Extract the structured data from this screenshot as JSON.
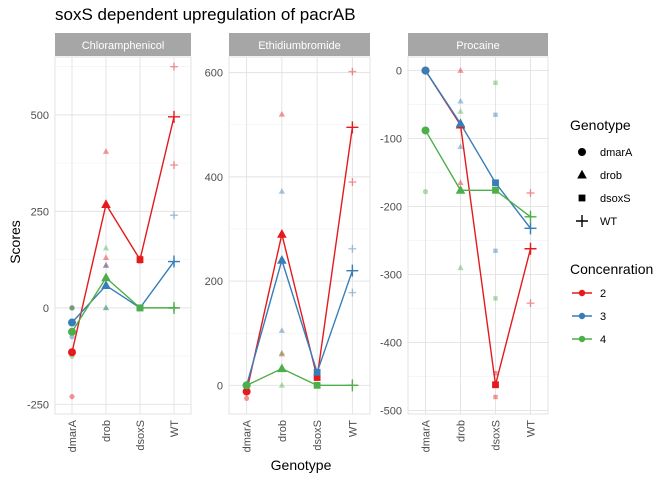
{
  "chart_data": {
    "type": "line",
    "title": "soxS dependent upregulation of pacrAB",
    "xlabel": "Genotype",
    "ylabel": "Scores",
    "categories": [
      "dmarA",
      "drob",
      "dsoxS",
      "WT"
    ],
    "grid": true,
    "colors": {
      "2": "#e41a1c",
      "3": "#377eb8",
      "4": "#4daf4a"
    },
    "legend": {
      "placement": "right",
      "shape_title": "Genotype",
      "shape_items": [
        {
          "label": "dmarA",
          "shape": "circle"
        },
        {
          "label": "drob",
          "shape": "triangle"
        },
        {
          "label": "dsoxS",
          "shape": "square"
        },
        {
          "label": "WT",
          "shape": "plus"
        }
      ],
      "color_title": "Concenration",
      "color_items": [
        {
          "label": "2",
          "color": "#e41a1c"
        },
        {
          "label": "3",
          "color": "#377eb8"
        },
        {
          "label": "4",
          "color": "#4daf4a"
        }
      ]
    },
    "panels": [
      {
        "strip": "Chloramphenicol",
        "ylim": [
          -275,
          650
        ],
        "yticks": [
          -250,
          0,
          250,
          500
        ],
        "series": [
          {
            "name": "2",
            "values": [
              -115,
              268,
              125,
              495
            ]
          },
          {
            "name": "3",
            "values": [
              -38,
              58,
              0,
              120
            ]
          },
          {
            "name": "4",
            "values": [
              -62,
              78,
              0,
              0
            ]
          }
        ],
        "replicates": [
          {
            "series": "2",
            "category": "dmarA",
            "values": [
              0,
              -115,
              -230
            ]
          },
          {
            "series": "2",
            "category": "drob",
            "values": [
              405,
              130,
              110
            ]
          },
          {
            "series": "2",
            "category": "dsoxS",
            "values": [
              130,
              120
            ]
          },
          {
            "series": "2",
            "category": "WT",
            "values": [
              625,
              370
            ]
          },
          {
            "series": "3",
            "category": "dmarA",
            "values": [
              0,
              -40,
              -75
            ]
          },
          {
            "series": "3",
            "category": "drob",
            "values": [
              110,
              60,
              0
            ]
          },
          {
            "series": "3",
            "category": "dsoxS",
            "values": [
              0
            ]
          },
          {
            "series": "3",
            "category": "WT",
            "values": [
              240,
              120,
              0
            ]
          },
          {
            "series": "4",
            "category": "dmarA",
            "values": [
              0,
              -62,
              -125
            ]
          },
          {
            "series": "4",
            "category": "drob",
            "values": [
              155,
              80,
              0
            ]
          },
          {
            "series": "4",
            "category": "dsoxS",
            "values": [
              0
            ]
          },
          {
            "series": "4",
            "category": "WT",
            "values": [
              0
            ]
          }
        ]
      },
      {
        "strip": "Ethidiumbromide",
        "ylim": [
          -55,
          630
        ],
        "yticks": [
          0,
          200,
          400,
          600
        ],
        "series": [
          {
            "name": "2",
            "values": [
              -12,
              290,
              15,
              495
            ]
          },
          {
            "name": "3",
            "values": [
              0,
              240,
              25,
              220
            ]
          },
          {
            "name": "4",
            "values": [
              0,
              32,
              0,
              0
            ]
          }
        ],
        "replicates": [
          {
            "series": "2",
            "category": "dmarA",
            "values": [
              0,
              -12,
              -25
            ]
          },
          {
            "series": "2",
            "category": "drob",
            "values": [
              520,
              290,
              60
            ]
          },
          {
            "series": "2",
            "category": "dsoxS",
            "values": [
              15
            ]
          },
          {
            "series": "2",
            "category": "WT",
            "values": [
              602,
              390
            ]
          },
          {
            "series": "3",
            "category": "dmarA",
            "values": [
              0
            ]
          },
          {
            "series": "3",
            "category": "drob",
            "values": [
              372,
              240,
              105
            ]
          },
          {
            "series": "3",
            "category": "dsoxS",
            "values": [
              25
            ]
          },
          {
            "series": "3",
            "category": "WT",
            "values": [
              262,
              220,
              178
            ]
          },
          {
            "series": "4",
            "category": "dmarA",
            "values": [
              0
            ]
          },
          {
            "series": "4",
            "category": "drob",
            "values": [
              62,
              32,
              0
            ]
          },
          {
            "series": "4",
            "category": "dsoxS",
            "values": [
              0
            ]
          },
          {
            "series": "4",
            "category": "WT",
            "values": [
              0
            ]
          }
        ]
      },
      {
        "strip": "Procaine",
        "ylim": [
          -505,
          20
        ],
        "yticks": [
          -500,
          -400,
          -300,
          -200,
          -100,
          0
        ],
        "series": [
          {
            "name": "2",
            "values": [
              0,
              -80,
              -462,
              -262
            ]
          },
          {
            "name": "3",
            "values": [
              0,
              -78,
              -165,
              -232
            ]
          },
          {
            "name": "4",
            "values": [
              -88,
              -176,
              -176,
              -215
            ]
          }
        ],
        "replicates": [
          {
            "series": "2",
            "category": "dmarA",
            "values": [
              0
            ]
          },
          {
            "series": "2",
            "category": "drob",
            "values": [
              0,
              -80,
              -165
            ]
          },
          {
            "series": "2",
            "category": "dsoxS",
            "values": [
              -445,
              -462,
              -480
            ]
          },
          {
            "series": "2",
            "category": "WT",
            "values": [
              -180,
              -262,
              -342
            ]
          },
          {
            "series": "3",
            "category": "dmarA",
            "values": [
              0
            ]
          },
          {
            "series": "3",
            "category": "drob",
            "values": [
              -45,
              -78,
              -112
            ]
          },
          {
            "series": "3",
            "category": "dsoxS",
            "values": [
              -65,
              -165,
              -265
            ]
          },
          {
            "series": "3",
            "category": "WT",
            "values": [
              -232
            ]
          },
          {
            "series": "4",
            "category": "dmarA",
            "values": [
              -88,
              -178
            ]
          },
          {
            "series": "4",
            "category": "drob",
            "values": [
              -60,
              -176,
              -290
            ]
          },
          {
            "series": "4",
            "category": "dsoxS",
            "values": [
              -18,
              -176,
              -335
            ]
          },
          {
            "series": "4",
            "category": "WT",
            "values": [
              -215
            ]
          }
        ]
      }
    ]
  }
}
